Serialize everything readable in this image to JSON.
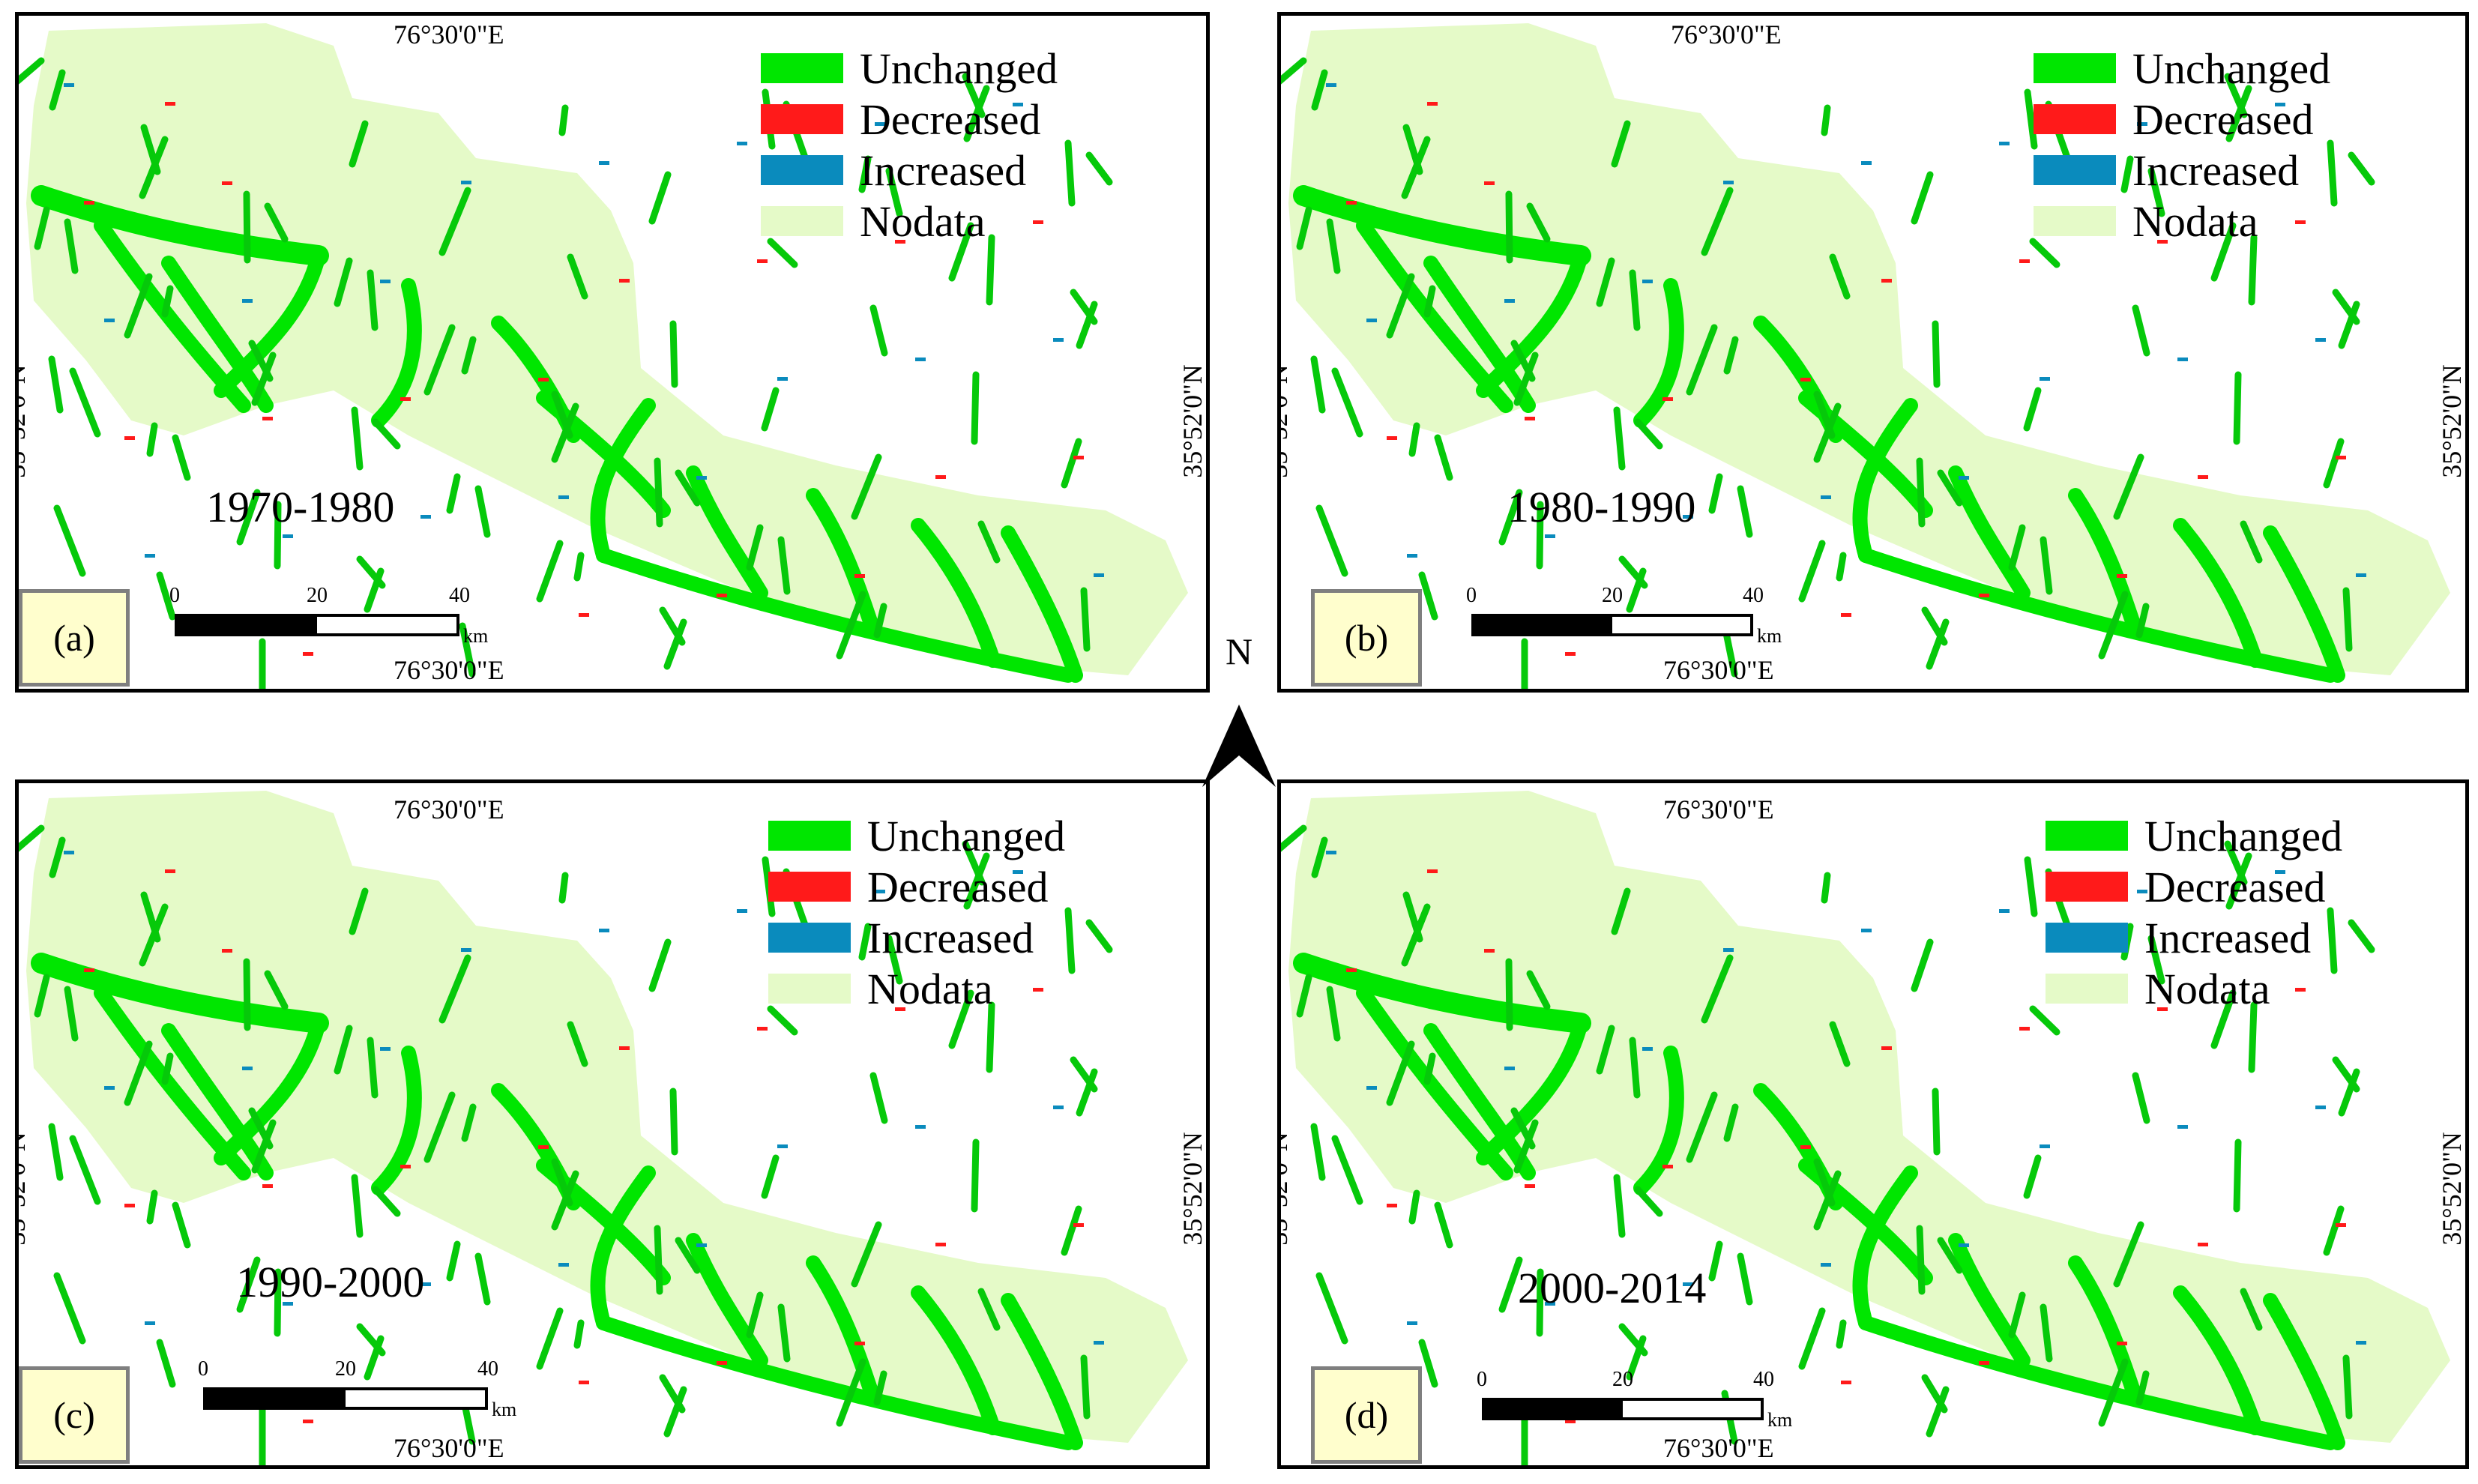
{
  "legend": {
    "items": [
      {
        "label": "Unchanged",
        "color": "#00e600"
      },
      {
        "label": "Decreased",
        "color": "#ff1a1a"
      },
      {
        "label": "Increased",
        "color": "#0a8bbd"
      },
      {
        "label": "Nodata",
        "color": "#e5fac8"
      }
    ]
  },
  "coords": {
    "lon": "76°30'0\"E",
    "lat": "35°52'0\"N"
  },
  "scale": {
    "ticks": [
      "0",
      "20",
      "40"
    ],
    "unit": "km"
  },
  "north_label": "N",
  "colors": {
    "glacier": "#00e600",
    "glacier_dark": "#06c90a",
    "nodata": "#e5fac8",
    "decreased": "#ff1a1a",
    "increased": "#0a8bbd"
  },
  "panels": [
    {
      "id": "a",
      "label": "(a)",
      "period": "1970-1980"
    },
    {
      "id": "b",
      "label": "(b)",
      "period": "1980-1990"
    },
    {
      "id": "c",
      "label": "(c)",
      "period": "1990-2000"
    },
    {
      "id": "d",
      "label": "(d)",
      "period": "2000-2014"
    }
  ]
}
